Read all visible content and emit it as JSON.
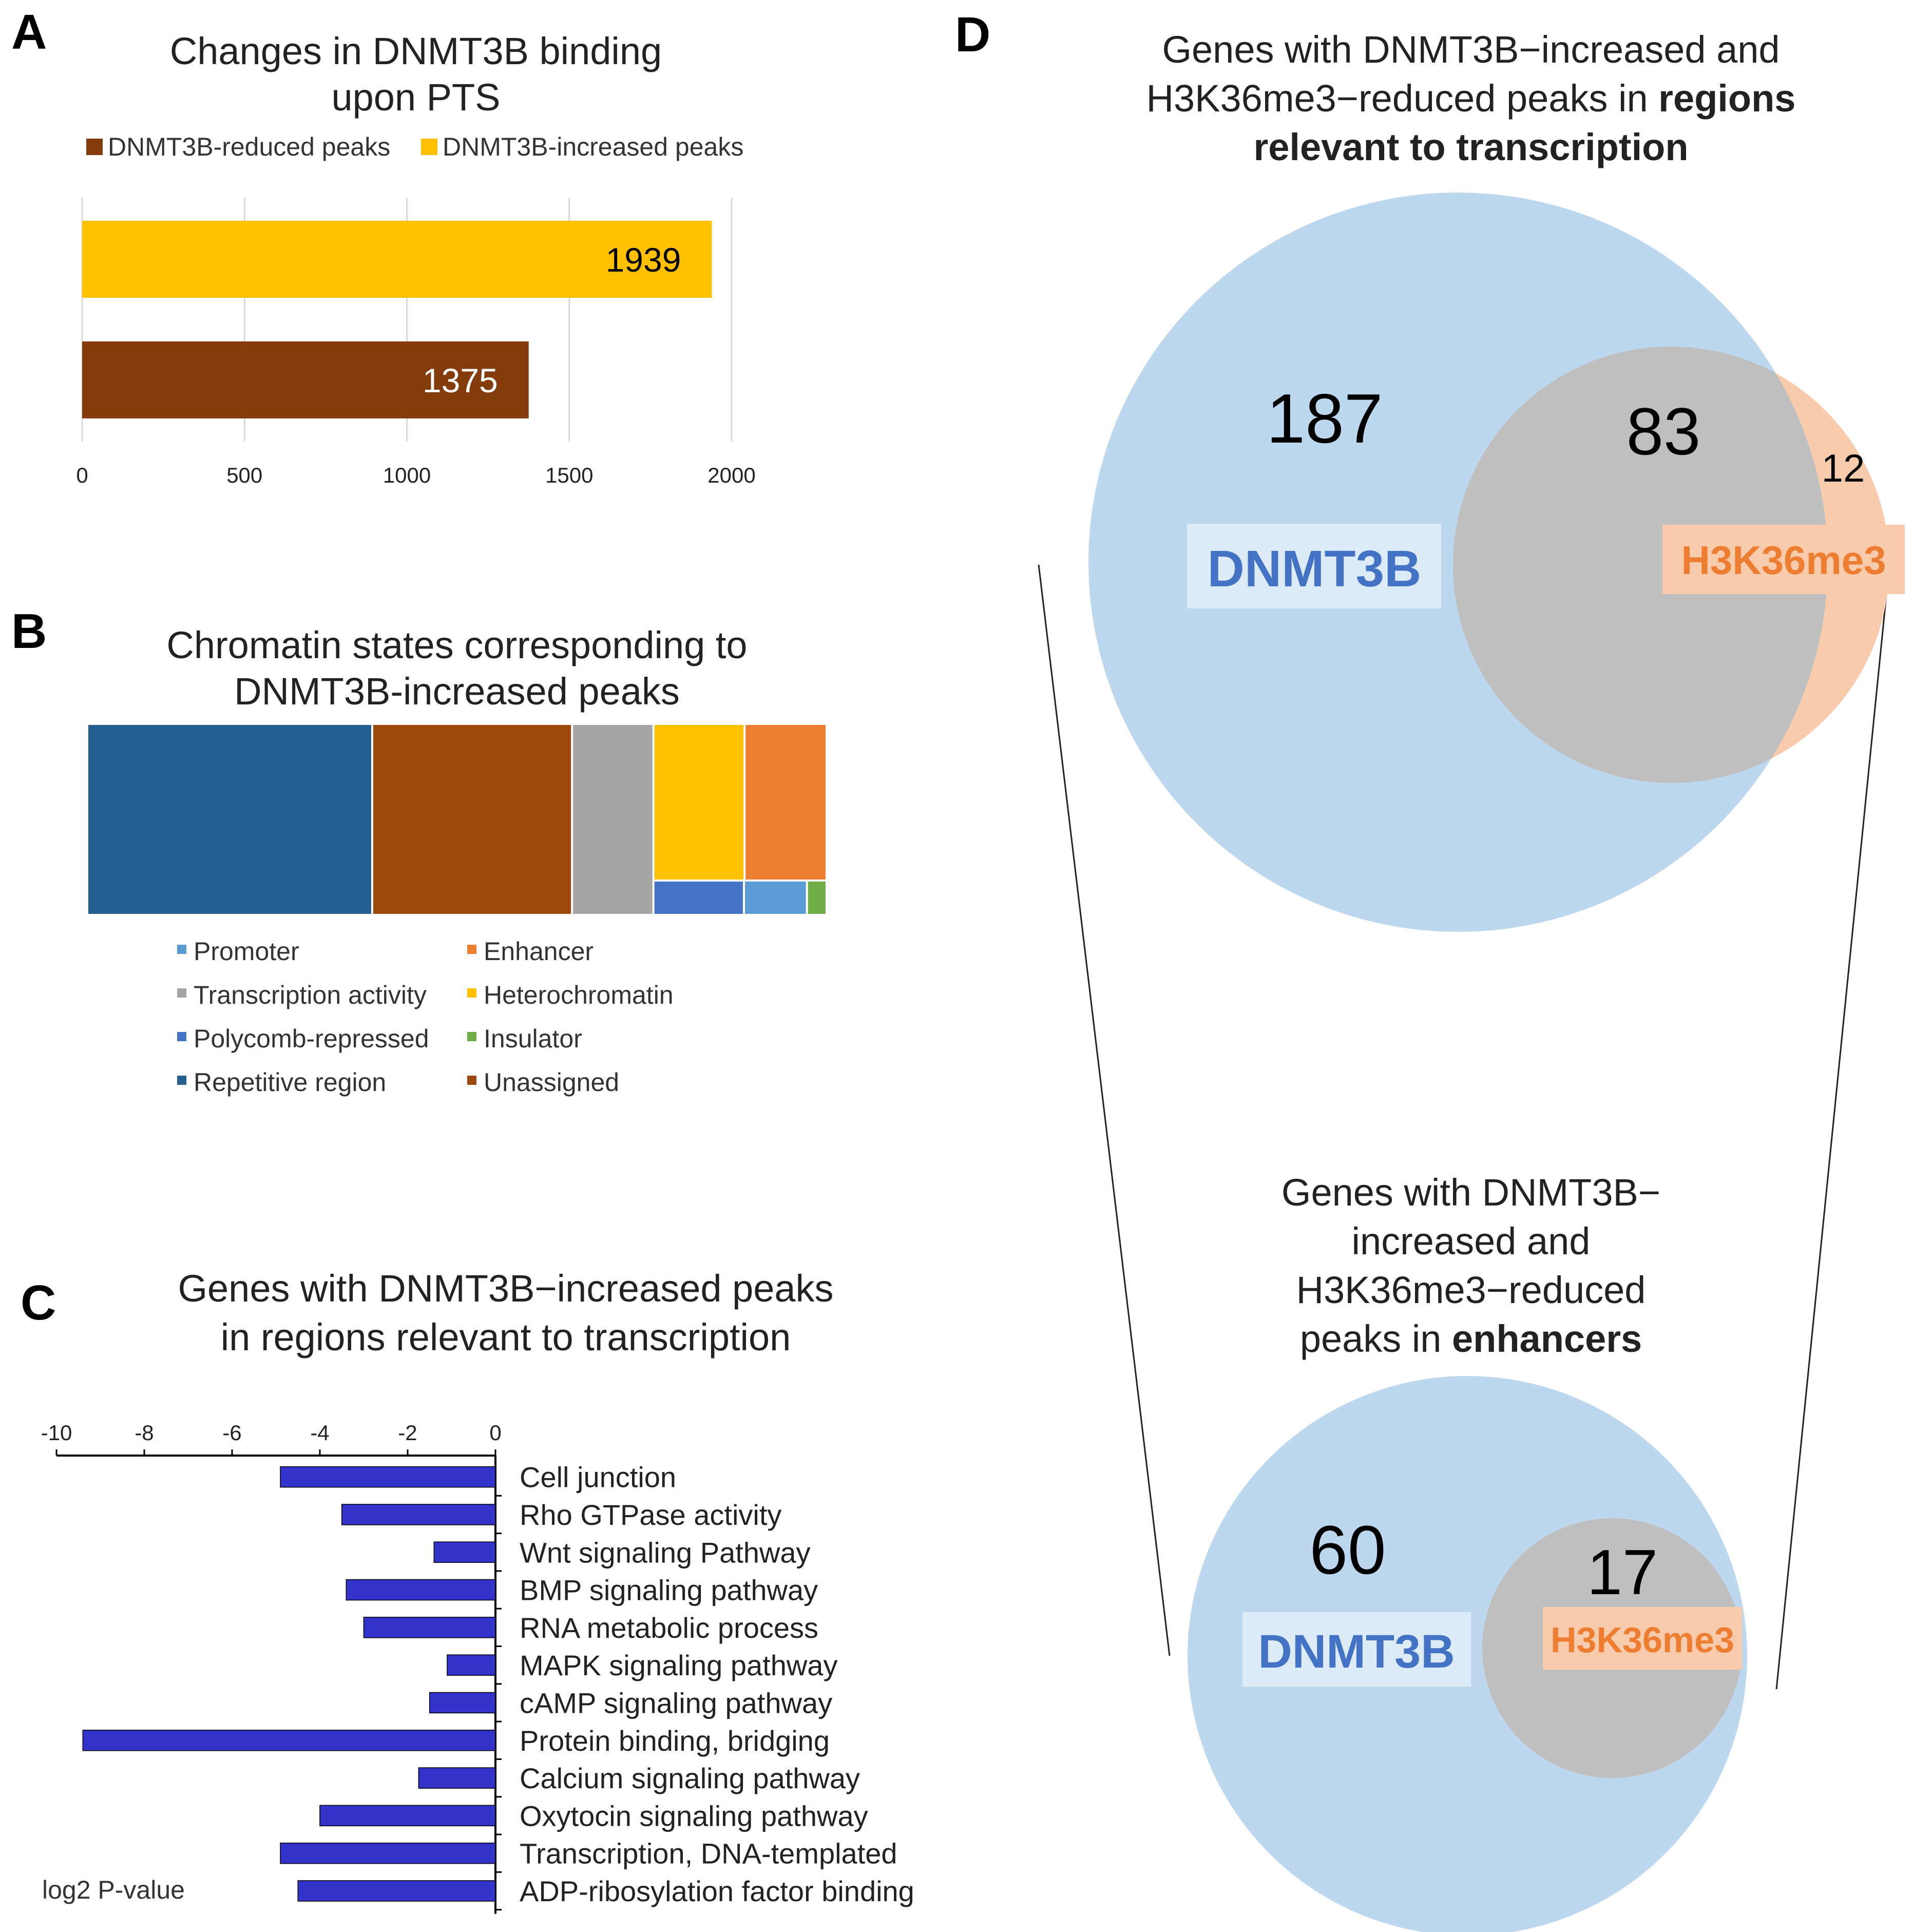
{
  "panel_labels": {
    "a": "A",
    "b": "B",
    "c": "C",
    "d": "D"
  },
  "chart_data": [
    {
      "id": "A",
      "type": "bar",
      "orientation": "horizontal",
      "title": [
        "Changes in DNMT3B binding",
        "upon PTS"
      ],
      "legend": [
        {
          "label": "DNMT3B-reduced peaks",
          "color": "#843C0C"
        },
        {
          "label": "DNMT3B-increased peaks",
          "color": "#FFC000"
        }
      ],
      "legend_position": "top",
      "series": [
        {
          "name": "DNMT3B-increased peaks",
          "value": 1939,
          "label": "1939",
          "color": "#FFC000"
        },
        {
          "name": "DNMT3B-reduced peaks",
          "value": 1375,
          "label": "1375",
          "color": "#843C0C"
        }
      ],
      "xlim": [
        0,
        2000
      ],
      "xticks": [
        0,
        500,
        1000,
        1500,
        2000
      ],
      "xtick_labels": [
        "0",
        "500",
        "1000",
        "1500",
        "2000"
      ],
      "grid": "vertical"
    },
    {
      "id": "B",
      "type": "treemap",
      "title": [
        "Chromatin  states corresponding to",
        "DNMT3B-increased peaks"
      ],
      "legend_position": "bottom",
      "categories": [
        {
          "label": "Repetitive region",
          "color": "#255E91",
          "value": 38.5
        },
        {
          "label": "Unassigned",
          "color": "#9E480E",
          "value": 27.0
        },
        {
          "label": "Transcription activity",
          "color": "#A5A5A5",
          "value": 11.0
        },
        {
          "label": "Heterochromatin",
          "color": "#FFC000",
          "value": 10.0
        },
        {
          "label": "Enhancer",
          "color": "#ED7D31",
          "value": 9.0
        },
        {
          "label": "Polycomb-repressed",
          "color": "#4472C4",
          "value": 2.3
        },
        {
          "label": "Promoter",
          "color": "#5B9BD5",
          "value": 1.6
        },
        {
          "label": "Insulator",
          "color": "#70AD47",
          "value": 0.5
        }
      ],
      "legend": [
        {
          "label": "Promoter",
          "color": "#5B9BD5"
        },
        {
          "label": "Enhancer",
          "color": "#ED7D31"
        },
        {
          "label": "Transcription activity",
          "color": "#A5A5A5"
        },
        {
          "label": "Heterochromatin",
          "color": "#FFC000"
        },
        {
          "label": "Polycomb-repressed",
          "color": "#4472C4"
        },
        {
          "label": "Insulator",
          "color": "#70AD47"
        },
        {
          "label": "Repetitive region",
          "color": "#255E91"
        },
        {
          "label": "Unassigned",
          "color": "#9E480E"
        }
      ]
    },
    {
      "id": "C",
      "type": "bar",
      "orientation": "horizontal",
      "title": [
        "Genes with DNMT3B−increased peaks",
        "in regions relevant to transcription"
      ],
      "xlabel": "log2 P-value",
      "xlim": [
        -10,
        0
      ],
      "xticks": [
        -10,
        -8,
        -6,
        -4,
        -2,
        0
      ],
      "xtick_labels": [
        "-10",
        "-8",
        "-6",
        "-4",
        "-2",
        "0"
      ],
      "bar_color": "#3333CC",
      "categories": [
        "Cell junction",
        "Rho GTPase activity",
        "Wnt signaling Pathway",
        "BMP signaling pathway",
        "RNA metabolic process",
        "MAPK signaling pathway",
        "cAMP signaling pathway",
        "Protein binding, bridging",
        "Calcium signaling pathway",
        "Oxytocin signaling pathway",
        "Transcription, DNA-templated",
        "ADP-ribosylation factor binding"
      ],
      "values": [
        -4.9,
        -3.5,
        -1.4,
        -3.4,
        -3.0,
        -1.1,
        -1.5,
        -9.4,
        -1.75,
        -4.0,
        -4.9,
        -4.5
      ]
    },
    {
      "id": "D-top",
      "type": "venn",
      "title_lines": [
        [
          {
            "t": "Genes with DNMT3B−increased and",
            "b": false
          }
        ],
        [
          {
            "t": "H3K36me3−reduced peaks in ",
            "b": false
          },
          {
            "t": "regions",
            "b": true
          }
        ],
        [
          {
            "t": "relevant to transcription",
            "b": true
          }
        ]
      ],
      "sets": [
        {
          "label": "DNMT3B",
          "only": 187,
          "only_label": "187",
          "color": "#BDD7EE",
          "text_color": "#4472C4"
        },
        {
          "label": "H3K36me3",
          "only": 12,
          "only_label": "12",
          "color": "#F8CBAD",
          "text_color": "#ED7D31"
        }
      ],
      "intersection": 83,
      "intersection_label": "83",
      "intersection_color": "#BFBFBF"
    },
    {
      "id": "D-bottom",
      "type": "venn",
      "title_lines": [
        [
          {
            "t": "Genes with DNMT3B−",
            "b": false
          }
        ],
        [
          {
            "t": "increased and",
            "b": false
          }
        ],
        [
          {
            "t": "H3K36me3−reduced",
            "b": false
          }
        ],
        [
          {
            "t": "peaks in ",
            "b": false
          },
          {
            "t": "enhancers",
            "b": true
          }
        ]
      ],
      "sets": [
        {
          "label": "DNMT3B",
          "only": 60,
          "only_label": "60",
          "color": "#BDD7EE",
          "text_color": "#4472C4"
        },
        {
          "label": "H3K36me3",
          "only": 0,
          "color": "#F8CBAD",
          "text_color": "#ED7D31"
        }
      ],
      "intersection": 17,
      "intersection_label": "17",
      "intersection_color": "#BFBFBF"
    }
  ]
}
